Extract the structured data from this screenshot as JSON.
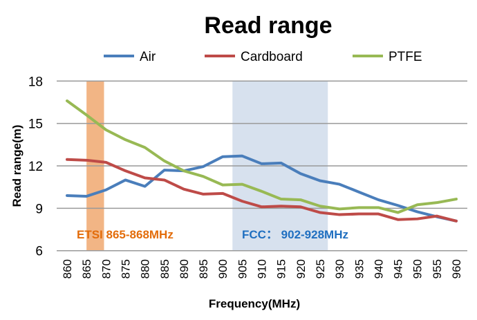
{
  "chart_data": {
    "type": "line",
    "title": "Read range",
    "xlabel": "Frequency(MHz)",
    "ylabel": "Read range(m)",
    "x": [
      860,
      865,
      870,
      875,
      880,
      885,
      890,
      895,
      900,
      905,
      910,
      915,
      920,
      925,
      930,
      935,
      940,
      945,
      950,
      955,
      960
    ],
    "ylim": [
      6,
      18
    ],
    "yticks": [
      6,
      9,
      12,
      15,
      18
    ],
    "grid": true,
    "legend_position": "top",
    "series": [
      {
        "name": "Air",
        "color": "#4a7ebb",
        "values": [
          9.9,
          9.85,
          10.3,
          11.0,
          10.55,
          11.7,
          11.65,
          11.95,
          12.65,
          12.7,
          12.15,
          12.2,
          11.45,
          10.95,
          10.7,
          10.15,
          9.6,
          9.2,
          8.75,
          8.4,
          8.1
        ]
      },
      {
        "name": "Cardboard",
        "color": "#be4b48",
        "values": [
          12.45,
          12.4,
          12.25,
          11.65,
          11.15,
          11.0,
          10.35,
          10.0,
          10.05,
          9.5,
          9.1,
          9.15,
          9.1,
          8.7,
          8.55,
          8.6,
          8.6,
          8.2,
          8.25,
          8.45,
          8.1
        ]
      },
      {
        "name": "PTFE",
        "color": "#98b954",
        "values": [
          16.6,
          15.6,
          14.55,
          13.85,
          13.3,
          12.35,
          11.65,
          11.25,
          10.65,
          10.7,
          10.2,
          9.65,
          9.6,
          9.15,
          8.95,
          9.05,
          9.05,
          8.7,
          9.25,
          9.4,
          9.65
        ]
      }
    ],
    "bands": [
      {
        "label": "ETSI 865-868MHz",
        "from": 865,
        "to": 869.5,
        "color": "#f0a870",
        "text_color": "#e36c0a"
      },
      {
        "label": "FCC： 902-928MHz",
        "from": 902.5,
        "to": 927,
        "color": "#c9d7e8",
        "text_color": "#1f6fc0"
      }
    ]
  }
}
